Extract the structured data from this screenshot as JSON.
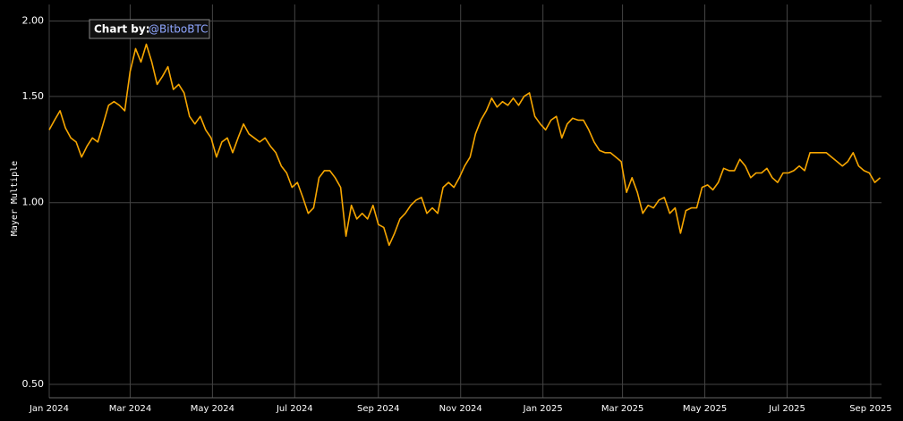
{
  "chart_data": {
    "type": "line",
    "y_label": "Mayer Multiple",
    "annotation": {
      "prefix": "Chart by:",
      "handle": "@BitboBTC"
    },
    "color": "#f7a600",
    "log_scale": true,
    "grid": true,
    "xlim": [
      "2024-01-01",
      "2025-09-09"
    ],
    "xticks": [
      {
        "value": "2024-01-01",
        "label": "Jan 2024"
      },
      {
        "value": "2024-03-01",
        "label": "Mar 2024"
      },
      {
        "value": "2024-05-01",
        "label": "May 2024"
      },
      {
        "value": "2024-07-01",
        "label": "Jul 2024"
      },
      {
        "value": "2024-09-01",
        "label": "Sep 2024"
      },
      {
        "value": "2024-11-01",
        "label": "Nov 2024"
      },
      {
        "value": "2025-01-01",
        "label": "Jan 2025"
      },
      {
        "value": "2025-03-01",
        "label": "Mar 2025"
      },
      {
        "value": "2025-05-01",
        "label": "May 2025"
      },
      {
        "value": "2025-07-01",
        "label": "Jul 2025"
      },
      {
        "value": "2025-09-01",
        "label": "Sep 2025"
      }
    ],
    "ylim": [
      0.475,
      2.13
    ],
    "yticks": [
      {
        "value": 0.5,
        "label": "0.50"
      },
      {
        "value": 1,
        "label": "1.00"
      },
      {
        "value": 1.5,
        "label": "1.50"
      },
      {
        "value": 2,
        "label": "2.00"
      }
    ],
    "x": [
      "2024-01-01",
      "2024-01-05",
      "2024-01-09",
      "2024-01-13",
      "2024-01-17",
      "2024-01-21",
      "2024-01-25",
      "2024-01-29",
      "2024-02-02",
      "2024-02-06",
      "2024-02-10",
      "2024-02-14",
      "2024-02-18",
      "2024-02-22",
      "2024-02-26",
      "2024-03-01",
      "2024-03-05",
      "2024-03-09",
      "2024-03-13",
      "2024-03-17",
      "2024-03-21",
      "2024-03-25",
      "2024-03-29",
      "2024-04-02",
      "2024-04-06",
      "2024-04-10",
      "2024-04-14",
      "2024-04-18",
      "2024-04-22",
      "2024-04-26",
      "2024-04-30",
      "2024-05-04",
      "2024-05-08",
      "2024-05-12",
      "2024-05-16",
      "2024-05-20",
      "2024-05-24",
      "2024-05-28",
      "2024-06-01",
      "2024-06-05",
      "2024-06-09",
      "2024-06-13",
      "2024-06-17",
      "2024-06-21",
      "2024-06-25",
      "2024-06-29",
      "2024-07-03",
      "2024-07-07",
      "2024-07-11",
      "2024-07-15",
      "2024-07-19",
      "2024-07-23",
      "2024-07-27",
      "2024-07-31",
      "2024-08-04",
      "2024-08-08",
      "2024-08-12",
      "2024-08-16",
      "2024-08-20",
      "2024-08-24",
      "2024-08-28",
      "2024-09-01",
      "2024-09-05",
      "2024-09-09",
      "2024-09-13",
      "2024-09-17",
      "2024-09-21",
      "2024-09-25",
      "2024-09-29",
      "2024-10-03",
      "2024-10-07",
      "2024-10-11",
      "2024-10-15",
      "2024-10-19",
      "2024-10-23",
      "2024-10-27",
      "2024-10-31",
      "2024-11-04",
      "2024-11-08",
      "2024-11-12",
      "2024-11-16",
      "2024-11-20",
      "2024-11-24",
      "2024-11-28",
      "2024-12-02",
      "2024-12-06",
      "2024-12-10",
      "2024-12-14",
      "2024-12-18",
      "2024-12-22",
      "2024-12-26",
      "2024-12-30",
      "2025-01-03",
      "2025-01-07",
      "2025-01-11",
      "2025-01-15",
      "2025-01-19",
      "2025-01-23",
      "2025-01-27",
      "2025-01-31",
      "2025-02-04",
      "2025-02-08",
      "2025-02-12",
      "2025-02-16",
      "2025-02-20",
      "2025-02-24",
      "2025-02-28",
      "2025-03-04",
      "2025-03-08",
      "2025-03-12",
      "2025-03-16",
      "2025-03-20",
      "2025-03-24",
      "2025-03-28",
      "2025-04-01",
      "2025-04-05",
      "2025-04-09",
      "2025-04-13",
      "2025-04-17",
      "2025-04-21",
      "2025-04-25",
      "2025-04-29",
      "2025-05-03",
      "2025-05-07",
      "2025-05-11",
      "2025-05-15",
      "2025-05-19",
      "2025-05-23",
      "2025-05-27",
      "2025-05-31",
      "2025-06-04",
      "2025-06-08",
      "2025-06-12",
      "2025-06-16",
      "2025-06-20",
      "2025-06-24",
      "2025-06-28",
      "2025-07-02",
      "2025-07-06",
      "2025-07-10",
      "2025-07-14",
      "2025-07-18",
      "2025-07-22",
      "2025-07-26",
      "2025-07-30",
      "2025-08-03",
      "2025-08-07",
      "2025-08-11",
      "2025-08-15",
      "2025-08-19",
      "2025-08-23",
      "2025-08-27",
      "2025-08-31",
      "2025-09-04",
      "2025-09-08"
    ],
    "values": [
      1.32,
      1.37,
      1.42,
      1.33,
      1.28,
      1.26,
      1.19,
      1.24,
      1.28,
      1.26,
      1.35,
      1.45,
      1.47,
      1.45,
      1.42,
      1.65,
      1.8,
      1.71,
      1.83,
      1.71,
      1.57,
      1.62,
      1.68,
      1.54,
      1.57,
      1.52,
      1.39,
      1.35,
      1.39,
      1.32,
      1.28,
      1.19,
      1.26,
      1.28,
      1.21,
      1.28,
      1.35,
      1.3,
      1.28,
      1.26,
      1.28,
      1.24,
      1.21,
      1.15,
      1.12,
      1.06,
      1.08,
      1.02,
      0.96,
      0.98,
      1.1,
      1.13,
      1.13,
      1.1,
      1.06,
      0.88,
      0.99,
      0.94,
      0.96,
      0.94,
      0.99,
      0.92,
      0.91,
      0.85,
      0.89,
      0.94,
      0.96,
      0.99,
      1.01,
      1.02,
      0.96,
      0.98,
      0.96,
      1.06,
      1.08,
      1.06,
      1.1,
      1.15,
      1.19,
      1.3,
      1.37,
      1.42,
      1.49,
      1.44,
      1.47,
      1.45,
      1.49,
      1.45,
      1.5,
      1.52,
      1.39,
      1.35,
      1.32,
      1.37,
      1.39,
      1.28,
      1.35,
      1.38,
      1.37,
      1.37,
      1.32,
      1.26,
      1.22,
      1.21,
      1.21,
      1.19,
      1.17,
      1.04,
      1.1,
      1.04,
      0.96,
      0.99,
      0.98,
      1.01,
      1.02,
      0.96,
      0.98,
      0.89,
      0.97,
      0.98,
      0.98,
      1.06,
      1.07,
      1.05,
      1.08,
      1.14,
      1.13,
      1.13,
      1.18,
      1.15,
      1.1,
      1.12,
      1.12,
      1.14,
      1.1,
      1.08,
      1.12,
      1.12,
      1.13,
      1.15,
      1.13,
      1.21,
      1.21,
      1.21,
      1.21,
      1.19,
      1.17,
      1.15,
      1.17,
      1.21,
      1.15,
      1.13,
      1.12,
      1.08,
      1.1
    ]
  }
}
